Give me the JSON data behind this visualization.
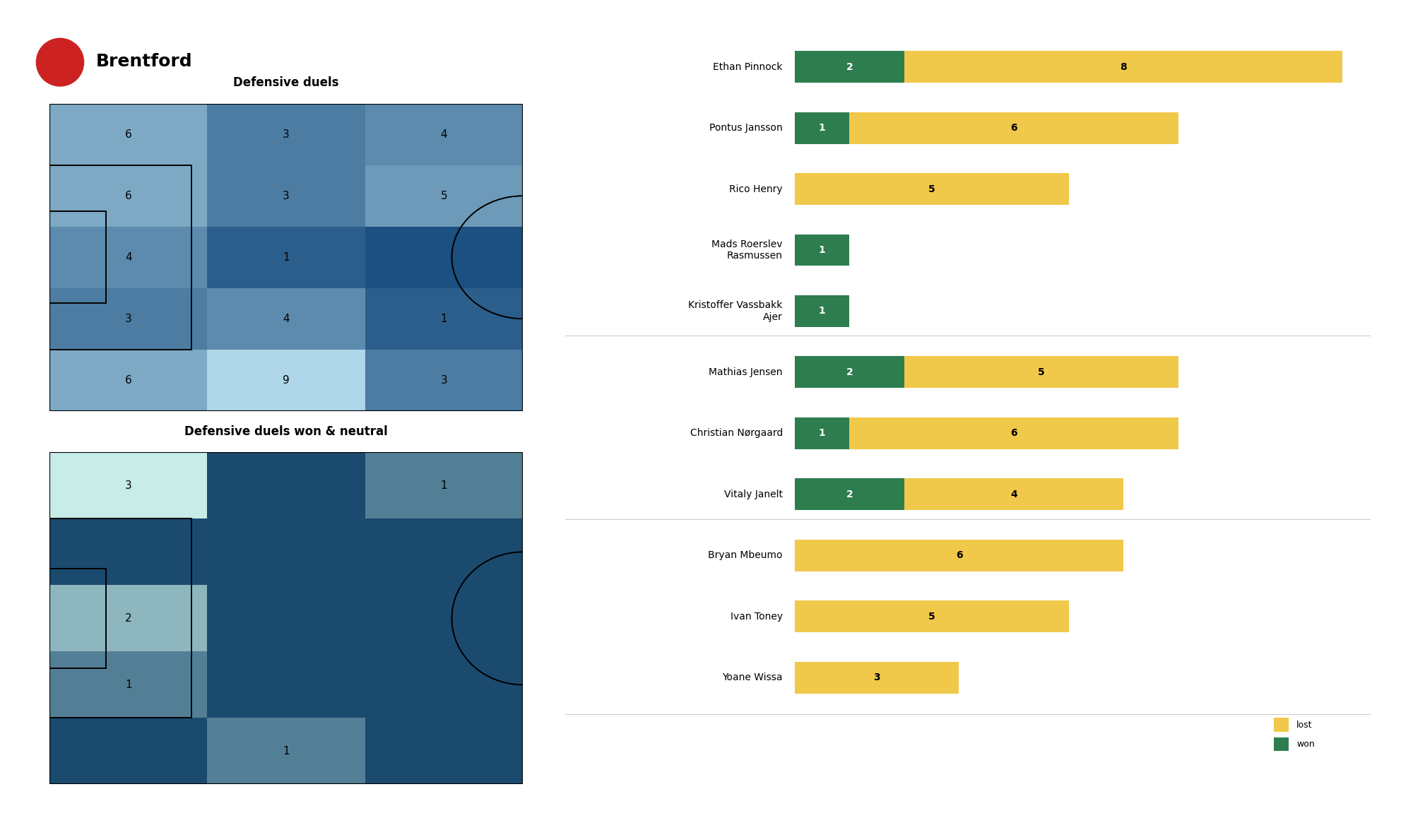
{
  "title": "Brentford",
  "heatmap1_title": "Defensive duels",
  "heatmap2_title": "Defensive duels won & neutral",
  "heatmap1_grid": [
    [
      6,
      3,
      4
    ],
    [
      6,
      3,
      5
    ],
    [
      4,
      1,
      0
    ],
    [
      3,
      4,
      1
    ],
    [
      6,
      9,
      3
    ]
  ],
  "heatmap2_grid": [
    [
      3,
      0,
      1
    ],
    [
      0,
      0,
      0
    ],
    [
      2,
      0,
      0
    ],
    [
      1,
      0,
      0
    ],
    [
      0,
      1,
      0
    ]
  ],
  "players": [
    "Ethan Pinnock",
    "Pontus Jansson",
    "Rico Henry",
    "Mads Roerslev\nRasmussen",
    "Kristoffer Vassbakk\nAjer",
    "Mathias Jensen",
    "Christian Nørgaard",
    "Vitaly Janelt",
    "Bryan Mbeumo",
    "Ivan Toney",
    "Yoane Wissa"
  ],
  "won": [
    2,
    1,
    0,
    1,
    1,
    2,
    1,
    2,
    0,
    0,
    0
  ],
  "lost": [
    8,
    6,
    5,
    0,
    0,
    5,
    6,
    4,
    6,
    5,
    3
  ],
  "color_won": "#2e7d4f",
  "color_lost": "#f0c84a",
  "background_color": "#ffffff",
  "logo_text": "Brentford",
  "legend_lost": "lost",
  "legend_won": "won",
  "bar_max": 10
}
